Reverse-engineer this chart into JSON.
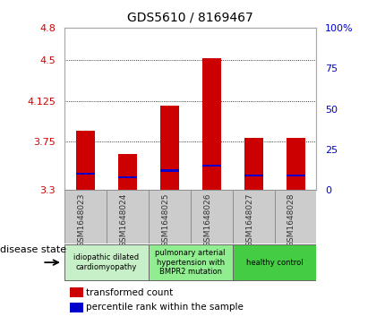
{
  "title": "GDS5610 / 8169467",
  "samples": [
    "GSM1648023",
    "GSM1648024",
    "GSM1648025",
    "GSM1648026",
    "GSM1648027",
    "GSM1648028"
  ],
  "transformed_counts": [
    3.85,
    3.63,
    4.08,
    4.52,
    3.78,
    3.78
  ],
  "percentile_ranks": [
    10,
    8,
    12,
    15,
    9,
    9
  ],
  "ylim_left": [
    3.3,
    4.8
  ],
  "ylim_right": [
    0,
    100
  ],
  "yticks_left": [
    3.3,
    3.75,
    4.125,
    4.5,
    4.8
  ],
  "yticks_left_labels": [
    "3.3",
    "3.75",
    "4.125",
    "4.5",
    "4.8"
  ],
  "yticks_right": [
    0,
    25,
    50,
    75,
    100
  ],
  "yticks_right_labels": [
    "0",
    "25",
    "50",
    "75",
    "100%"
  ],
  "bar_color": "#cc0000",
  "percentile_color": "#0000cc",
  "bar_width": 0.45,
  "background_color": "#ffffff",
  "plot_bg_color": "#ffffff",
  "tick_label_color_left": "#cc0000",
  "tick_label_color_right": "#0000cc",
  "disease_groups": [
    {
      "label": "idiopathic dilated\ncardiomyopathy",
      "indices": [
        0,
        1
      ],
      "color": "#c8f0c8"
    },
    {
      "label": "pulmonary arterial\nhypertension with\nBMPR2 mutation",
      "indices": [
        2,
        3
      ],
      "color": "#90ee90"
    },
    {
      "label": "healthy control",
      "indices": [
        4,
        5
      ],
      "color": "#44cc44"
    }
  ],
  "legend_red_label": "transformed count",
  "legend_blue_label": "percentile rank within the sample",
  "disease_state_label": "disease state",
  "header_bg": "#cccccc",
  "gridline_ticks": [
    3.75,
    4.125,
    4.5
  ]
}
